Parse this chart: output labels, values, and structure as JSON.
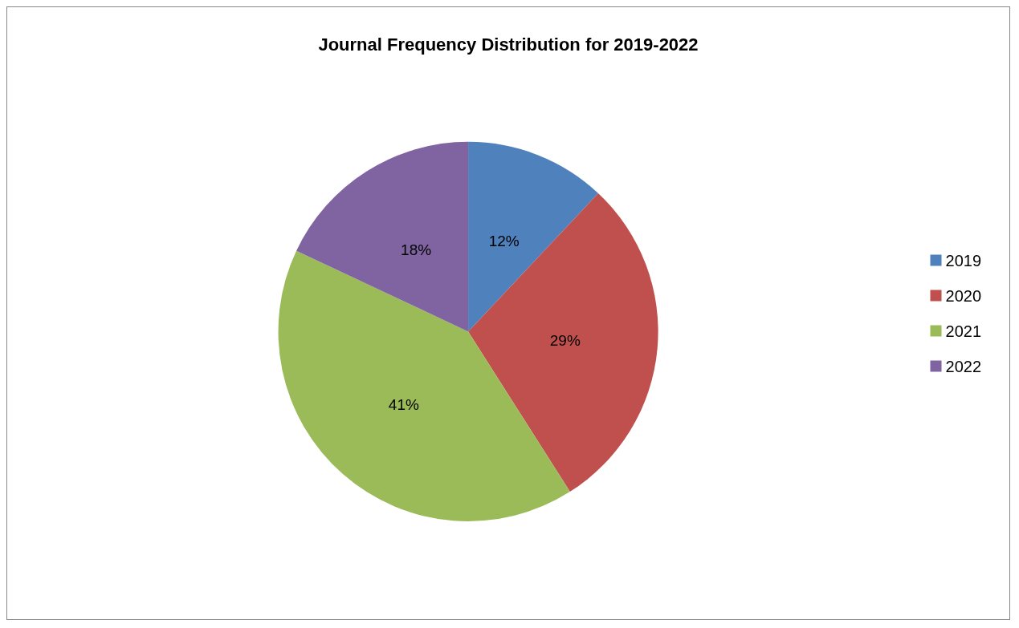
{
  "chart_data": {
    "type": "pie",
    "title": "Journal Frequency Distribution for 2019-2022",
    "categories": [
      "2019",
      "2020",
      "2021",
      "2022"
    ],
    "values": [
      12,
      29,
      41,
      18
    ],
    "colors": [
      "#4f81bd",
      "#c0504d",
      "#9bbb59",
      "#8064a2"
    ],
    "value_labels": [
      "12%",
      "29%",
      "41%",
      "18%"
    ],
    "legend": "right"
  }
}
